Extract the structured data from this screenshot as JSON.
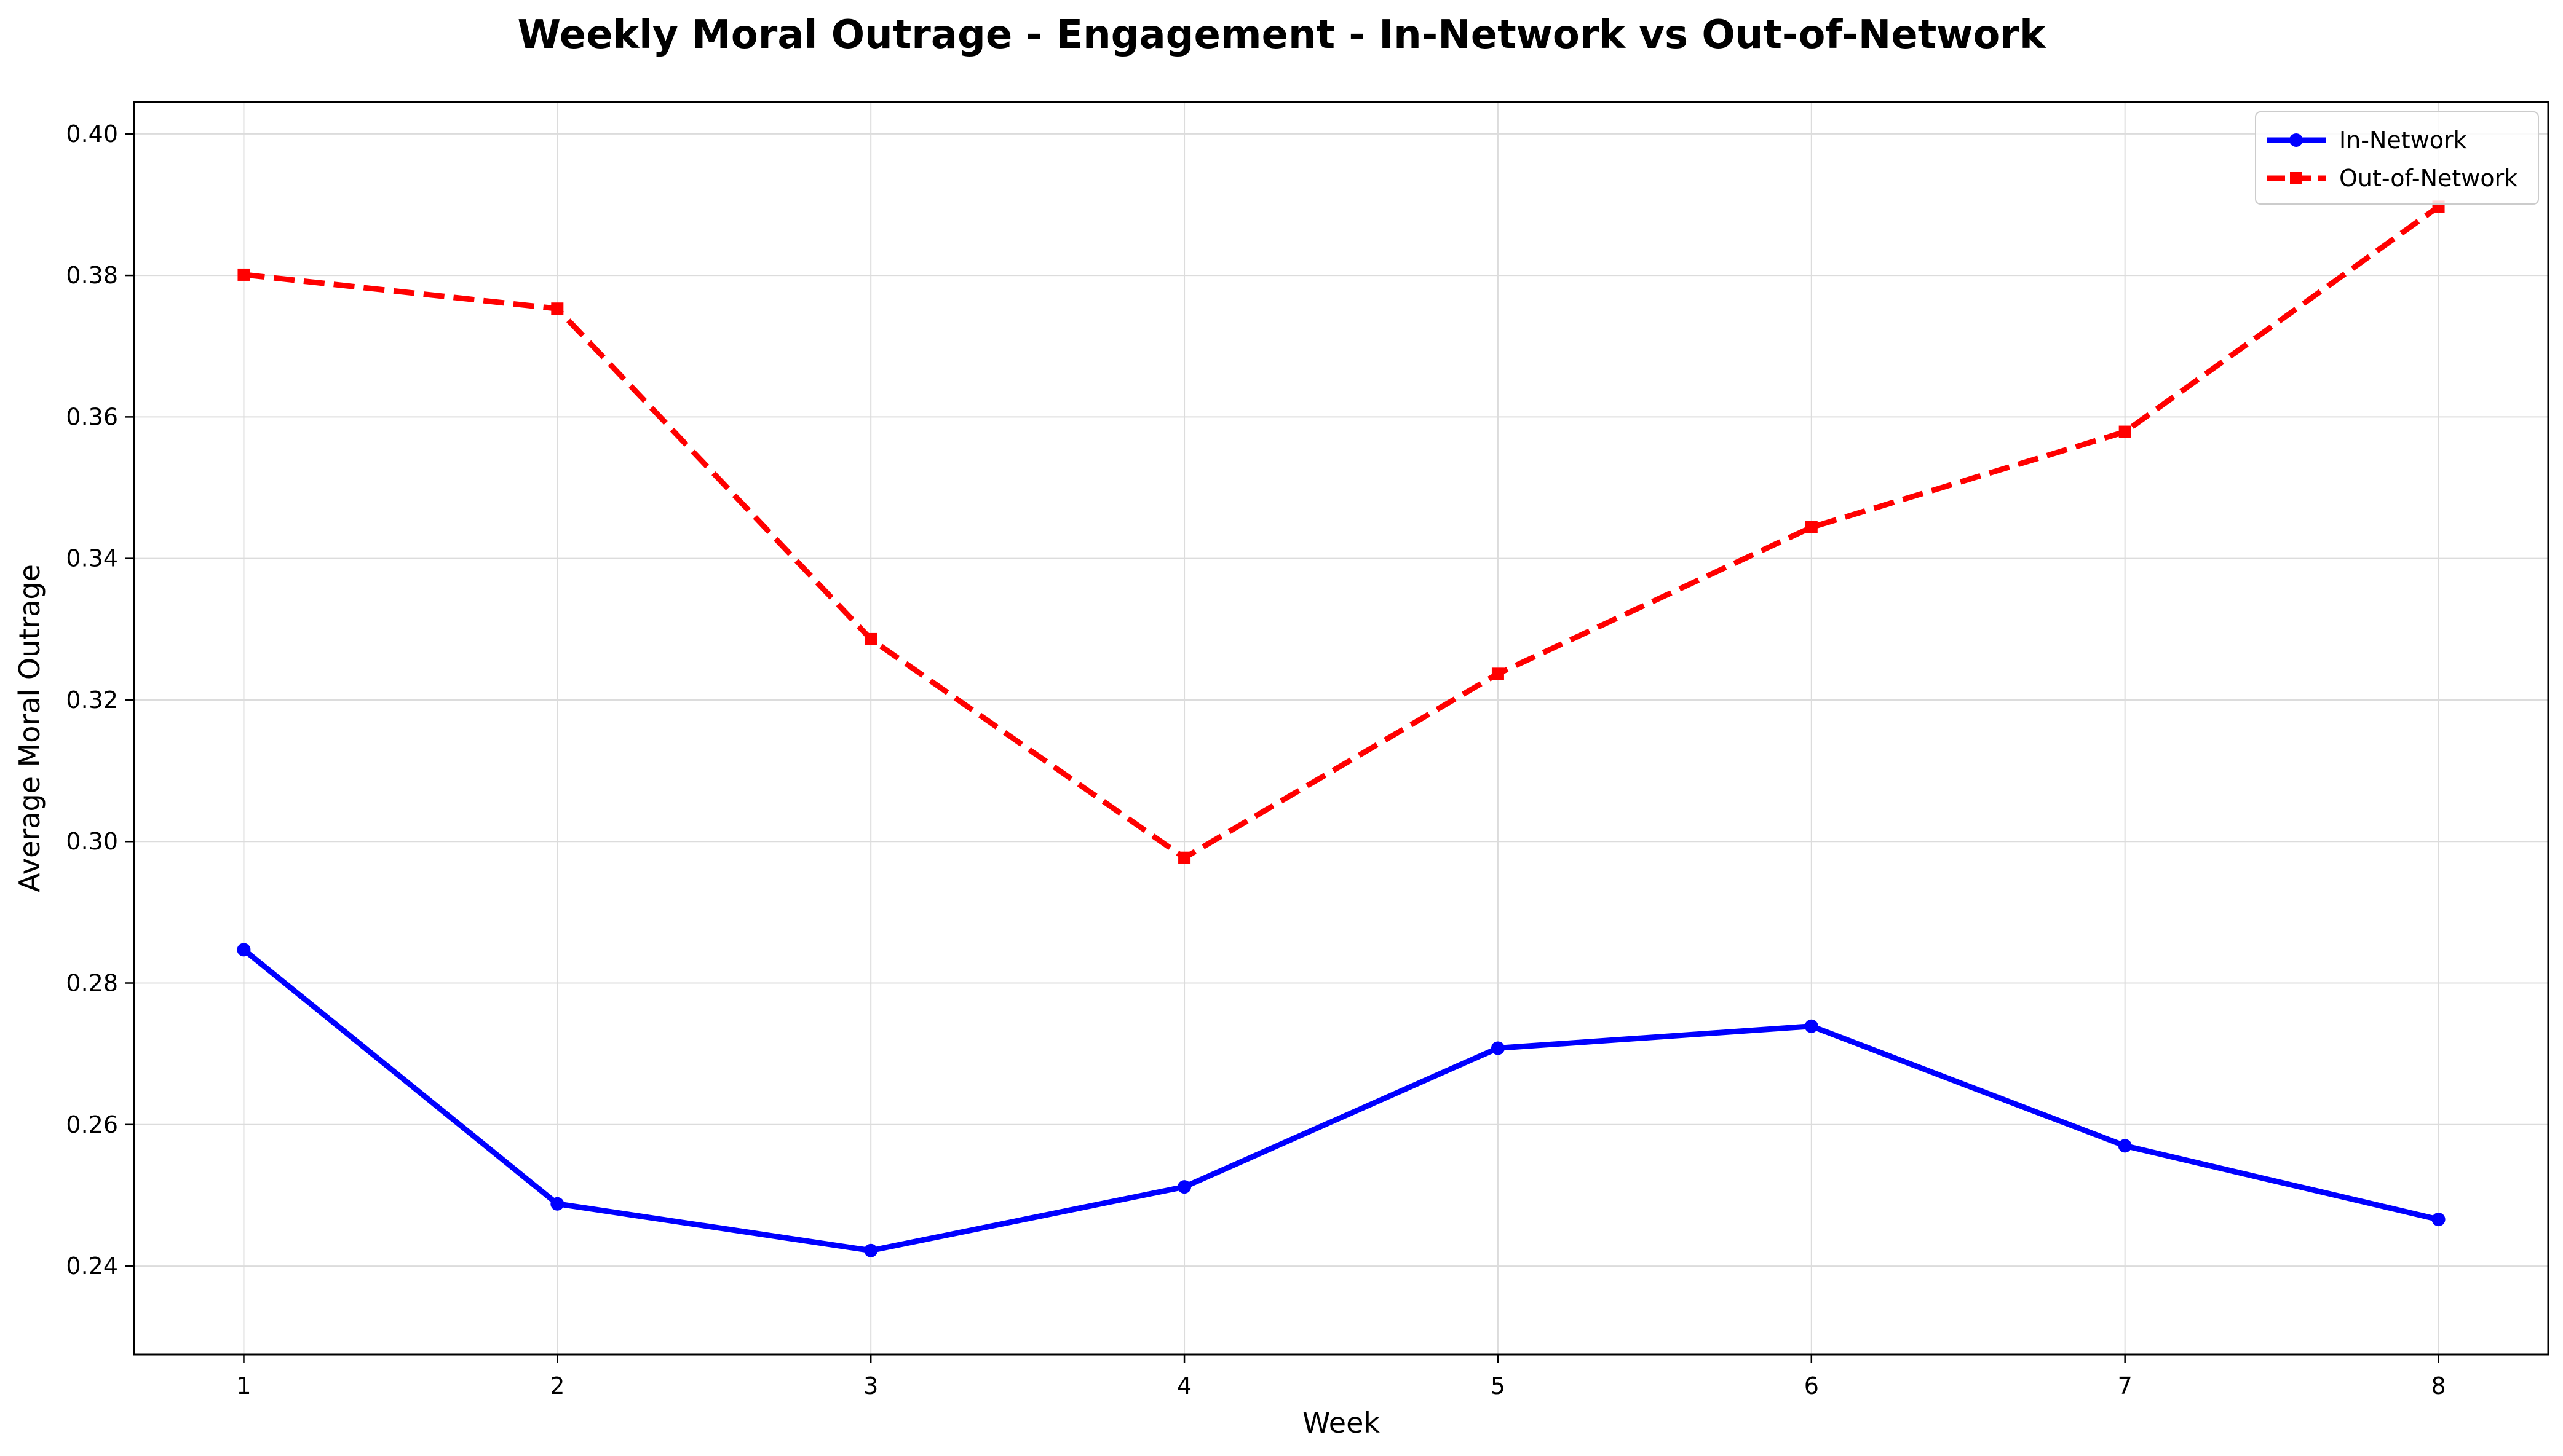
{
  "chart_data": {
    "type": "line",
    "title": "Weekly Moral Outrage - Engagement - In-Network vs Out-of-Network",
    "xlabel": "Week",
    "ylabel": "Average Moral Outrage",
    "x": [
      1,
      2,
      3,
      4,
      5,
      6,
      7,
      8
    ],
    "xlim": [
      0.65,
      8.35
    ],
    "ylim": [
      0.2275,
      0.4045
    ],
    "yticks": [
      0.24,
      0.26,
      0.28,
      0.3,
      0.32,
      0.34,
      0.36,
      0.38,
      0.4
    ],
    "ytick_labels": [
      "0.24",
      "0.26",
      "0.28",
      "0.30",
      "0.32",
      "0.34",
      "0.36",
      "0.38",
      "0.40"
    ],
    "xtick_labels": [
      "1",
      "2",
      "3",
      "4",
      "5",
      "6",
      "7",
      "8"
    ],
    "grid": true,
    "legend_position": "top-right",
    "series": [
      {
        "name": "In-Network",
        "values": [
          0.2847,
          0.2488,
          0.2422,
          0.2512,
          0.2708,
          0.2739,
          0.257,
          0.2466
        ],
        "color": "#0000ff",
        "line_style": "solid",
        "marker": "circle"
      },
      {
        "name": "Out-of-Network",
        "values": [
          0.3801,
          0.3753,
          0.3286,
          0.2977,
          0.3237,
          0.3444,
          0.3579,
          0.3897
        ],
        "color": "#ff0000",
        "line_style": "dashed",
        "marker": "square"
      }
    ]
  }
}
